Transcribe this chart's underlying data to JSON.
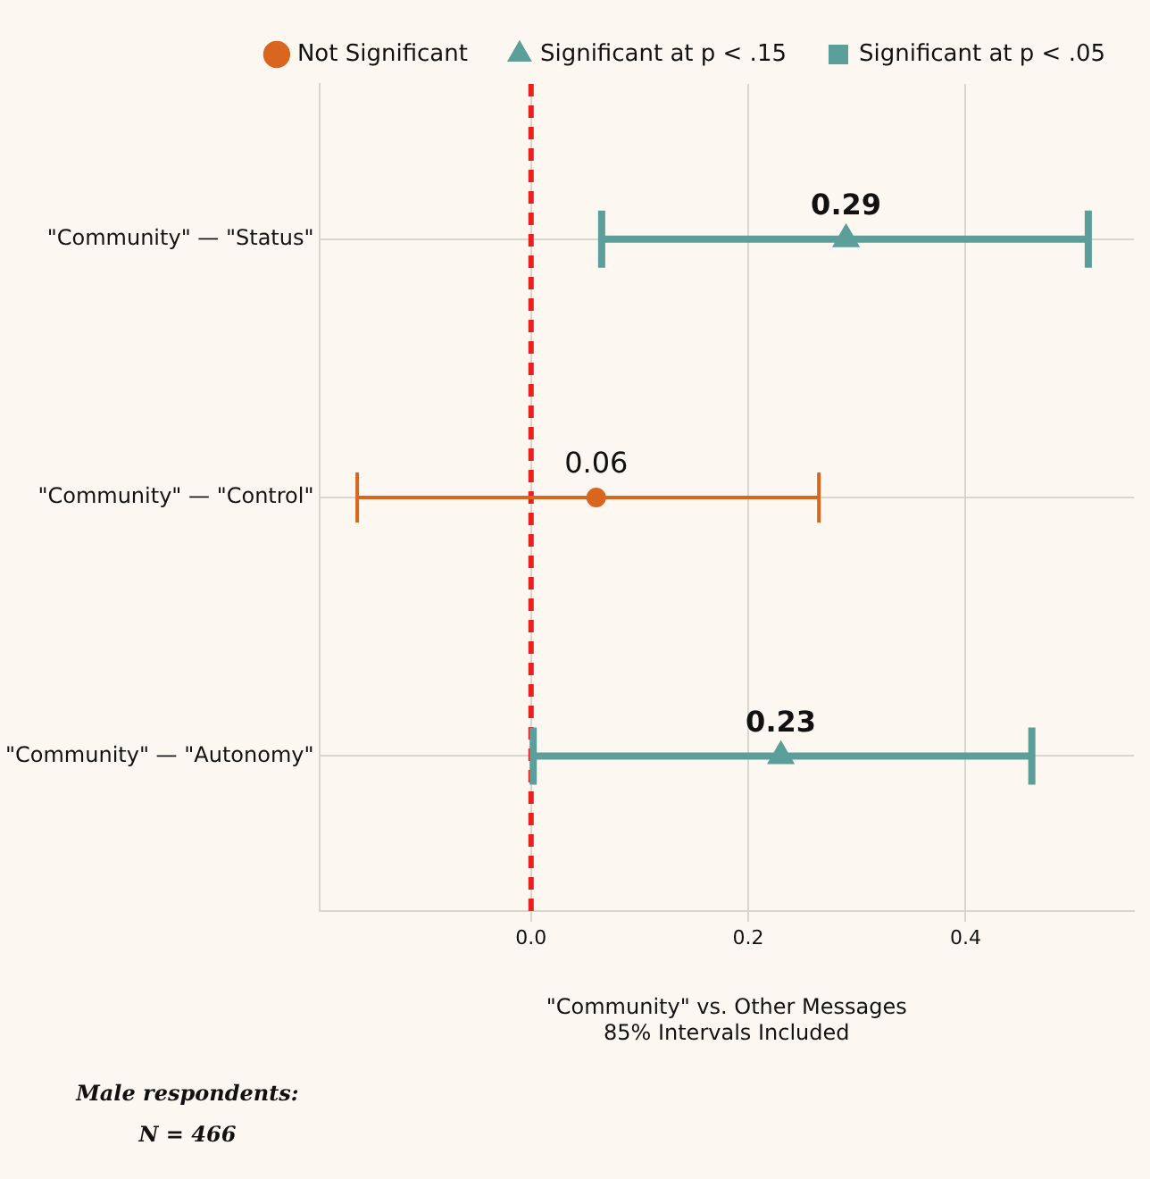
{
  "chart_data": {
    "type": "scatter",
    "orientation": "horizontal",
    "categories": [
      "\"Community\" — \"Status\"",
      "\"Community\" — \"Control\"",
      "\"Community\" — \"Autonomy\""
    ],
    "series": [
      {
        "name": "Not Significant",
        "color": "#d9661f",
        "marker": "circle",
        "values": [
          null,
          0.06,
          null
        ],
        "errors": [
          null,
          [
            -0.16,
            0.265
          ],
          null
        ]
      },
      {
        "name": "Significant at p < .15",
        "color": "#5b9e9a",
        "marker": "triangle",
        "values": [
          0.29,
          null,
          0.23
        ],
        "errors": [
          [
            0.065,
            0.513
          ],
          null,
          [
            0.002,
            0.461
          ]
        ]
      },
      {
        "name": "Significant at p < .05",
        "color": "#5b9e9a",
        "marker": "square",
        "values": [
          null,
          null,
          null
        ]
      }
    ],
    "xlim": [
      -0.195,
      0.555
    ],
    "xticks": [
      {
        "value": 0,
        "label": "0.0"
      },
      {
        "value": 0.2,
        "label": "0.2"
      },
      {
        "value": 0.4,
        "label": "0.4"
      }
    ],
    "xlabel": "\"Community\" vs. Other Messages\n85% Intervals Included",
    "ref_lines": [
      {
        "axis": "x",
        "value": 0,
        "color": "#e8201e",
        "line_style": "dashed"
      }
    ],
    "annotations": [
      "Male respondents:",
      "N = 466"
    ],
    "data_labels": true,
    "grid": true,
    "legend": "top"
  }
}
